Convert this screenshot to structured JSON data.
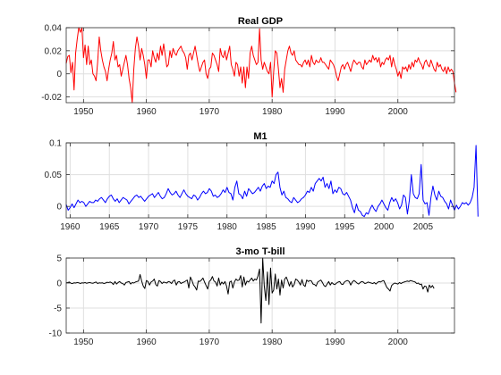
{
  "chart_data": [
    {
      "type": "line",
      "title": "Real GDP",
      "xlabel": "",
      "ylabel": "",
      "xlim": [
        1947.25,
        2009.0
      ],
      "ylim": [
        -0.025,
        0.04
      ],
      "xticks": [
        1950,
        1960,
        1970,
        1980,
        1990,
        2000
      ],
      "yticks": [
        -0.02,
        0,
        0.02,
        0.04
      ],
      "yticklabels": [
        "-0.02",
        "0",
        "0.02",
        "0.04"
      ],
      "grid": true,
      "color": "#ff0000",
      "series": [
        {
          "x_start": 1947.25,
          "x_step": 0.25,
          "values": [
            0.009,
            0.015,
            0.016,
            0.001,
            0.01,
            -0.014,
            0.018,
            0.03,
            0.04,
            0.036,
            0.04,
            0.014,
            0.025,
            0.008,
            0.024,
            0.008,
            0.012,
            0.0,
            -0.002,
            -0.006,
            0.01,
            0.032,
            0.02,
            0.012,
            0.006,
            0.002,
            -0.006,
            0.004,
            0.012,
            0.018,
            0.028,
            0.012,
            0.016,
            0.006,
            0.008,
            -0.002,
            0.004,
            0.01,
            0.016,
            0.008,
            -0.004,
            -0.012,
            -0.025,
            0.004,
            0.022,
            0.032,
            0.024,
            0.012,
            0.022,
            0.016,
            0.008,
            -0.004,
            0.012,
            0.012,
            0.006,
            0.02,
            0.014,
            0.01,
            0.018,
            0.012,
            0.024,
            0.016,
            0.026,
            0.016,
            0.006,
            0.008,
            0.02,
            0.014,
            0.022,
            0.018,
            0.016,
            0.02,
            0.022,
            0.024,
            0.02,
            0.018,
            0.014,
            0.004,
            0.016,
            0.018,
            0.012,
            0.018,
            0.024,
            0.016,
            0.008,
            0.002,
            0.006,
            0.01,
            0.012,
            0.0,
            -0.004,
            0.004,
            0.006,
            0.018,
            0.016,
            0.012,
            0.008,
            0.002,
            0.022,
            0.016,
            0.014,
            0.02,
            0.012,
            0.018,
            0.024,
            0.008,
            0.004,
            -0.002,
            0.01,
            0.008,
            -0.002,
            0.006,
            -0.008,
            0.006,
            -0.012,
            0.006,
            -0.004,
            0.018,
            0.024,
            0.016,
            0.012,
            0.008,
            0.01,
            0.039,
            0.012,
            0.004,
            0.01,
            0.006,
            0.002,
            0.0,
            0.01,
            -0.02,
            0.002,
            0.02,
            0.018,
            0.004,
            -0.012,
            -0.004,
            -0.016,
            0.004,
            0.012,
            0.02,
            0.024,
            0.018,
            0.016,
            0.02,
            0.012,
            0.01,
            0.008,
            0.008,
            0.006,
            0.01,
            0.012,
            0.008,
            0.012,
            0.006,
            0.016,
            0.01,
            0.008,
            0.012,
            0.01,
            0.01,
            0.014,
            0.01,
            0.01,
            0.008,
            0.006,
            0.004,
            0.012,
            0.01,
            0.008,
            0.004,
            -0.002,
            -0.006,
            0.0,
            0.006,
            0.008,
            0.004,
            0.008,
            0.01,
            0.006,
            0.002,
            0.008,
            0.012,
            0.01,
            0.008,
            0.01,
            0.01,
            0.006,
            0.004,
            0.012,
            0.008,
            0.01,
            0.012,
            0.01,
            0.016,
            0.012,
            0.014,
            0.01,
            0.014,
            0.006,
            0.01,
            0.008,
            0.012,
            0.014,
            0.012,
            0.016,
            0.006,
            0.014,
            0.008,
            0.004,
            -0.002,
            0.002,
            -0.004,
            0.006,
            0.004,
            0.006,
            0.002,
            0.008,
            0.004,
            0.01,
            0.006,
            0.012,
            0.01,
            0.014,
            0.01,
            0.008,
            0.004,
            0.01,
            0.012,
            0.008,
            0.006,
            0.012,
            0.008,
            0.004,
            0.002,
            0.01,
            0.006,
            0.008,
            0.004,
            0.002,
            0.006,
            0.0,
            0.006,
            0.002,
            0.004,
            0.002,
            -0.008,
            -0.016
          ]
        }
      ]
    },
    {
      "type": "line",
      "title": "M1",
      "xlabel": "",
      "ylabel": "",
      "xlim": [
        1959.5,
        2009.0
      ],
      "ylim": [
        -0.018,
        0.1
      ],
      "xticks": [
        1960,
        1965,
        1970,
        1975,
        1980,
        1985,
        1990,
        1995,
        2000,
        2005
      ],
      "yticks": [
        0,
        0.05,
        0.1
      ],
      "yticklabels": [
        "0",
        "0.05",
        "0.1"
      ],
      "grid": true,
      "color": "#0000ff",
      "series": [
        {
          "x_start": 1959.5,
          "x_step": 0.25,
          "values": [
            0.003,
            -0.006,
            -0.002,
            0.004,
            -0.002,
            0.004,
            0.01,
            0.006,
            0.008,
            0.006,
            0.0,
            0.004,
            0.008,
            0.006,
            0.006,
            0.01,
            0.008,
            0.012,
            0.014,
            0.01,
            0.006,
            0.012,
            0.016,
            0.018,
            0.012,
            0.008,
            0.012,
            0.006,
            0.01,
            0.014,
            0.012,
            0.01,
            0.004,
            0.008,
            0.012,
            0.016,
            0.018,
            0.014,
            0.016,
            0.012,
            0.008,
            0.012,
            0.016,
            0.018,
            0.02,
            0.014,
            0.018,
            0.022,
            0.016,
            0.012,
            0.014,
            0.02,
            0.028,
            0.022,
            0.018,
            0.02,
            0.024,
            0.018,
            0.014,
            0.02,
            0.026,
            0.02,
            0.016,
            0.014,
            0.012,
            0.018,
            0.016,
            0.01,
            0.014,
            0.02,
            0.024,
            0.02,
            0.022,
            0.028,
            0.024,
            0.016,
            0.018,
            0.014,
            0.016,
            0.02,
            0.026,
            0.022,
            0.03,
            0.022,
            0.02,
            0.01,
            0.03,
            0.04,
            0.02,
            0.018,
            0.012,
            0.024,
            0.016,
            0.028,
            0.024,
            0.02,
            0.022,
            0.026,
            0.03,
            0.024,
            0.032,
            0.036,
            0.028,
            0.032,
            0.03,
            0.04,
            0.036,
            0.05,
            0.054,
            0.03,
            0.018,
            0.024,
            0.014,
            0.012,
            0.008,
            0.006,
            0.014,
            0.01,
            0.006,
            0.008,
            0.012,
            0.014,
            0.018,
            0.024,
            0.022,
            0.03,
            0.024,
            0.036,
            0.04,
            0.044,
            0.04,
            0.046,
            0.03,
            0.036,
            0.028,
            0.04,
            0.02,
            0.026,
            0.022,
            0.03,
            0.028,
            0.02,
            0.018,
            0.022,
            0.016,
            0.01,
            -0.002,
            -0.01,
            0.004,
            -0.006,
            -0.008,
            -0.014,
            -0.016,
            -0.01,
            -0.012,
            -0.004,
            0.002,
            -0.004,
            -0.008,
            0.0,
            0.004,
            0.01,
            0.004,
            -0.002,
            -0.006,
            0.006,
            0.014,
            0.008,
            0.012,
            0.006,
            -0.004,
            0.002,
            0.018,
            0.014,
            -0.012,
            0.01,
            0.05,
            0.02,
            0.014,
            0.012,
            0.02,
            0.066,
            0.01,
            0.004,
            0.006,
            -0.014,
            0.014,
            0.032,
            0.018,
            0.01,
            0.024,
            0.016,
            0.014,
            0.008,
            0.004,
            -0.004,
            0.01,
            0.002,
            -0.006,
            0.002,
            -0.004,
            0.0,
            0.006,
            0.004,
            0.006,
            0.002,
            0.006,
            0.014,
            0.03,
            0.096,
            -0.016
          ]
        }
      ]
    },
    {
      "type": "line",
      "title": "3-mo T-bill",
      "xlabel": "",
      "ylabel": "",
      "xlim": [
        1947.25,
        2009.0
      ],
      "ylim": [
        -10,
        5
      ],
      "xticks": [
        1950,
        1960,
        1970,
        1980,
        1990,
        2000
      ],
      "yticks": [
        -10,
        -5,
        0,
        5
      ],
      "yticklabels": [
        "-10",
        "-5",
        "0",
        "5"
      ],
      "grid": true,
      "color": "#000000",
      "series": [
        {
          "x_start": 1947.25,
          "x_step": 0.25,
          "values": [
            0.05,
            0.1,
            0.2,
            -0.05,
            -0.1,
            0.05,
            0.0,
            0.1,
            0.05,
            -0.1,
            0.05,
            0.0,
            0.1,
            -0.05,
            0.05,
            0.1,
            0.0,
            -0.05,
            0.1,
            0.2,
            -0.1,
            0.05,
            0.0,
            0.05,
            -0.1,
            0.0,
            0.15,
            0.1,
            0.2,
            0.05,
            -0.3,
            0.3,
            -0.2,
            0.1,
            0.3,
            0.0,
            -0.1,
            -0.4,
            0.1,
            0.2,
            0.3,
            -0.2,
            0.1,
            0.0,
            0.2,
            0.3,
            0.4,
            1.7,
            0.4,
            -0.6,
            -1.1,
            0.5,
            0.3,
            -0.4,
            0.2,
            0.4,
            0.8,
            -0.3,
            -0.6,
            0.5,
            0.3,
            -0.1,
            0.2,
            0.1,
            0.0,
            0.3,
            0.2,
            -0.1,
            0.4,
            0.6,
            -0.4,
            0.2,
            0.3,
            -0.1,
            0.1,
            0.2,
            0.4,
            0.6,
            -1.0,
            1.2,
            0.5,
            -0.4,
            -0.8,
            -1.4,
            0.4,
            0.3,
            0.6,
            1.0,
            0.2,
            -0.5,
            -1.2,
            0.3,
            0.6,
            1.3,
            0.4,
            0.2,
            -0.6,
            1.0,
            -0.4,
            0.2,
            -0.2,
            0.3,
            -0.6,
            -2.2,
            0.2,
            0.4,
            -1.0,
            0.2,
            0.8,
            0.5,
            0.6,
            1.5,
            -0.8,
            1.2,
            -0.4,
            0.4,
            0.2,
            0.6,
            1.0,
            0.4,
            0.8,
            0.6,
            1.4,
            2.8,
            -8.0,
            5.0,
            -0.6,
            -3.5,
            2.2,
            -4.3,
            3.0,
            -2.0,
            -1.4,
            1.8,
            -1.2,
            0.8,
            -2.4,
            0.6,
            -1.0,
            0.8,
            1.2,
            0.4,
            -0.6,
            0.3,
            -0.8,
            -0.3,
            0.8,
            0.6,
            0.2,
            -0.4,
            0.7,
            -0.4,
            -0.7,
            0.6,
            0.3,
            0.5,
            0.4,
            -0.2,
            -0.3,
            -0.6,
            0.2,
            0.4,
            0.6,
            0.1,
            -0.5,
            -0.7,
            -0.2,
            0.3,
            -0.4,
            0.1,
            -0.2,
            -0.3,
            0.0,
            0.2,
            0.3,
            -0.2,
            -0.3,
            0.2,
            0.4,
            0.5,
            0.3,
            -0.4,
            0.2,
            0.5,
            0.3,
            0.0,
            -0.2,
            0.1,
            0.3,
            0.2,
            -0.1,
            0.0,
            0.2,
            0.1,
            0.0,
            -0.1,
            0.1,
            -0.2,
            0.1,
            0.3,
            0.2,
            0.4,
            0.5,
            -0.2,
            -0.9,
            -1.2,
            -1.6,
            -0.5,
            -0.2,
            0.0,
            -0.1,
            -0.2,
            0.1,
            -0.1,
            0.1,
            0.2,
            0.3,
            0.4,
            0.3,
            0.5,
            0.4,
            0.3,
            0.2,
            -0.1,
            0.0,
            -0.3,
            -0.2,
            -1.2,
            -0.6,
            -0.7,
            -1.8,
            -0.4,
            -0.9,
            -0.5,
            -1.1
          ]
        }
      ]
    }
  ]
}
